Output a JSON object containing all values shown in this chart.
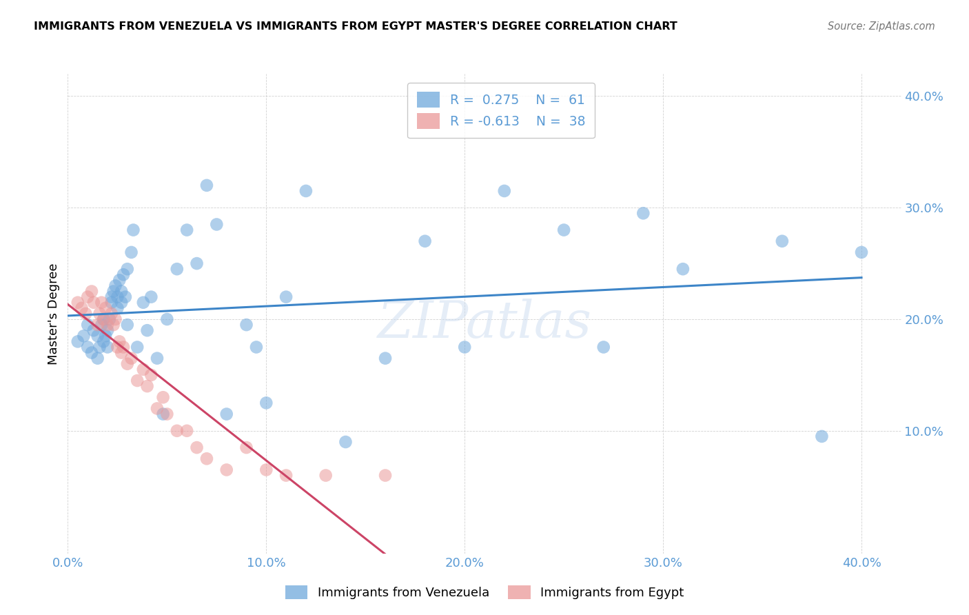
{
  "title": "IMMIGRANTS FROM VENEZUELA VS IMMIGRANTS FROM EGYPT MASTER'S DEGREE CORRELATION CHART",
  "source": "Source: ZipAtlas.com",
  "ylabel": "Master's Degree",
  "xlim": [
    0.0,
    0.42
  ],
  "ylim": [
    -0.01,
    0.42
  ],
  "ytick_positions": [
    0.1,
    0.2,
    0.3,
    0.4
  ],
  "xtick_positions": [
    0.0,
    0.1,
    0.2,
    0.3,
    0.4
  ],
  "color_venezuela": "#6fa8dc",
  "color_egypt": "#ea9999",
  "trendline_color_venezuela": "#3d85c8",
  "trendline_color_egypt": "#cc4466",
  "watermark": "ZIPatlas",
  "tick_color": "#5b9bd5",
  "venezuela_x": [
    0.005,
    0.008,
    0.01,
    0.01,
    0.012,
    0.013,
    0.015,
    0.015,
    0.016,
    0.017,
    0.018,
    0.018,
    0.019,
    0.02,
    0.02,
    0.021,
    0.022,
    0.022,
    0.023,
    0.024,
    0.025,
    0.025,
    0.026,
    0.027,
    0.027,
    0.028,
    0.029,
    0.03,
    0.03,
    0.032,
    0.033,
    0.035,
    0.038,
    0.04,
    0.042,
    0.045,
    0.048,
    0.05,
    0.055,
    0.06,
    0.065,
    0.07,
    0.075,
    0.08,
    0.09,
    0.095,
    0.1,
    0.11,
    0.12,
    0.14,
    0.16,
    0.18,
    0.2,
    0.22,
    0.25,
    0.27,
    0.29,
    0.31,
    0.36,
    0.38,
    0.4
  ],
  "venezuela_y": [
    0.18,
    0.185,
    0.175,
    0.195,
    0.17,
    0.19,
    0.165,
    0.185,
    0.175,
    0.195,
    0.18,
    0.2,
    0.185,
    0.175,
    0.19,
    0.2,
    0.215,
    0.22,
    0.225,
    0.23,
    0.21,
    0.22,
    0.235,
    0.215,
    0.225,
    0.24,
    0.22,
    0.245,
    0.195,
    0.26,
    0.28,
    0.175,
    0.215,
    0.19,
    0.22,
    0.165,
    0.115,
    0.2,
    0.245,
    0.28,
    0.25,
    0.32,
    0.285,
    0.115,
    0.195,
    0.175,
    0.125,
    0.22,
    0.315,
    0.09,
    0.165,
    0.27,
    0.175,
    0.315,
    0.28,
    0.175,
    0.295,
    0.245,
    0.27,
    0.095,
    0.26
  ],
  "egypt_x": [
    0.005,
    0.007,
    0.009,
    0.01,
    0.012,
    0.013,
    0.015,
    0.016,
    0.017,
    0.018,
    0.019,
    0.02,
    0.022,
    0.023,
    0.024,
    0.025,
    0.026,
    0.027,
    0.028,
    0.03,
    0.032,
    0.035,
    0.038,
    0.04,
    0.042,
    0.045,
    0.048,
    0.05,
    0.055,
    0.06,
    0.065,
    0.07,
    0.08,
    0.09,
    0.1,
    0.11,
    0.13,
    0.16
  ],
  "egypt_y": [
    0.215,
    0.21,
    0.205,
    0.22,
    0.225,
    0.215,
    0.195,
    0.205,
    0.215,
    0.2,
    0.21,
    0.195,
    0.205,
    0.195,
    0.2,
    0.175,
    0.18,
    0.17,
    0.175,
    0.16,
    0.165,
    0.145,
    0.155,
    0.14,
    0.15,
    0.12,
    0.13,
    0.115,
    0.1,
    0.1,
    0.085,
    0.075,
    0.065,
    0.085,
    0.065,
    0.06,
    0.06,
    0.06
  ]
}
